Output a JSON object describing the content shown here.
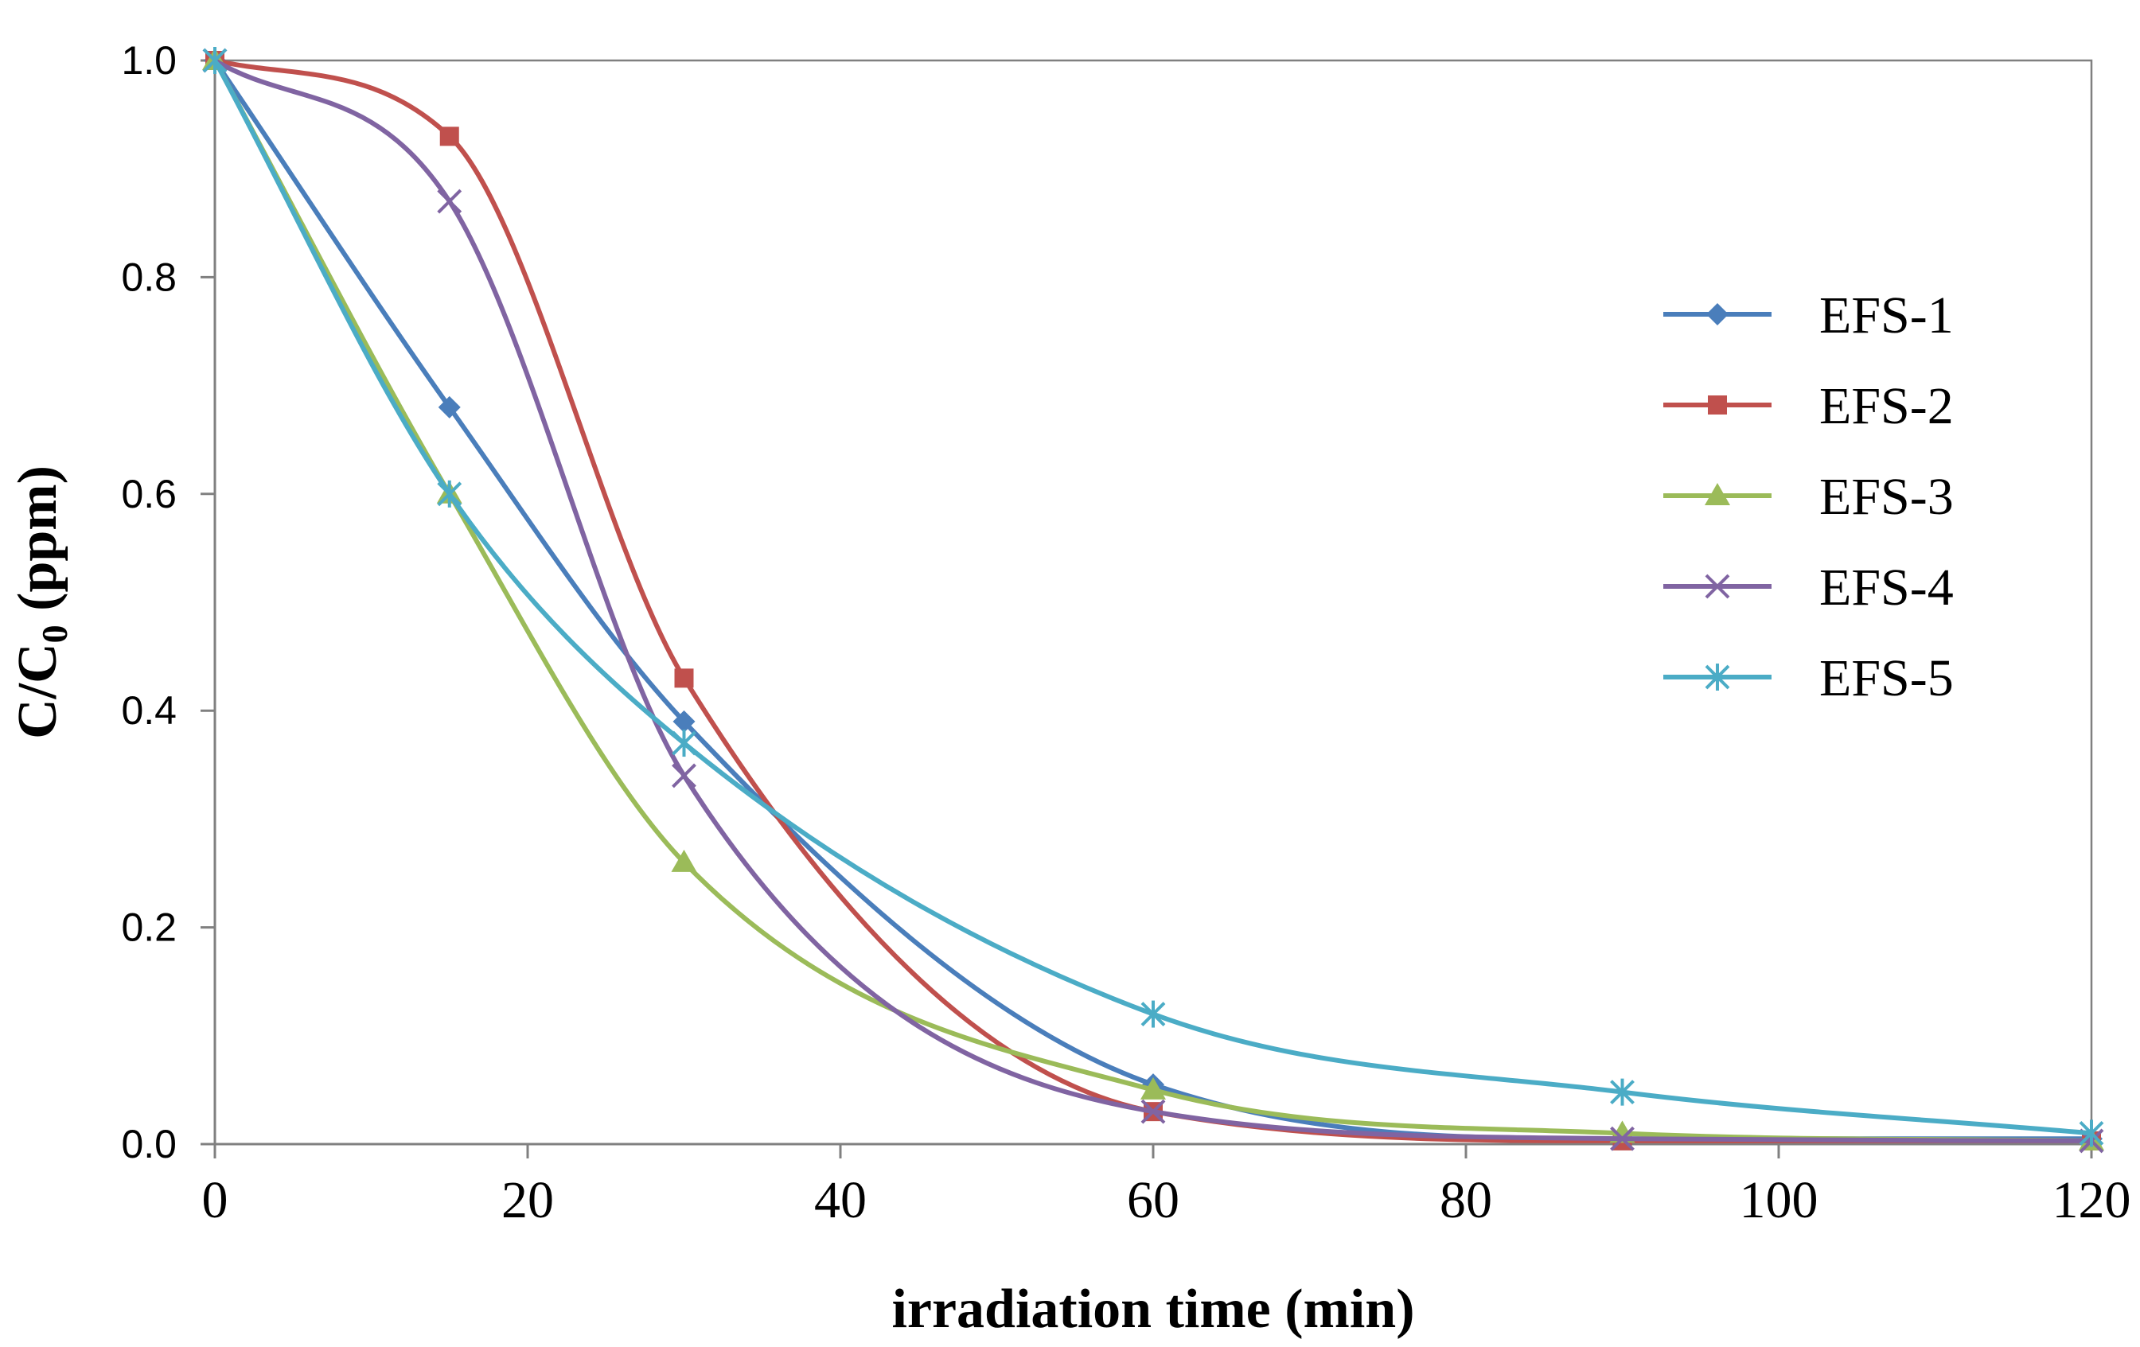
{
  "chart_data": {
    "type": "line",
    "title": "",
    "xlabel": "irradiation time  (min)",
    "ylabel_main": "C/C",
    "ylabel_sub": "0",
    "ylabel_tail": " (ppm)",
    "xlim": [
      0,
      120
    ],
    "ylim": [
      0,
      1.0
    ],
    "xticks": [
      "0",
      "20",
      "40",
      "60",
      "80",
      "100",
      "120"
    ],
    "yticks": [
      "0.0",
      "0.2",
      "0.4",
      "0.6",
      "0.8",
      "1.0"
    ],
    "legend_position": "right",
    "x": [
      0,
      15,
      30,
      60,
      90,
      120
    ],
    "series": [
      {
        "name": "EFS-1",
        "color": "#4a7ebb",
        "marker": "diamond",
        "values": [
          1.0,
          0.68,
          0.39,
          0.055,
          0.005,
          0.005
        ]
      },
      {
        "name": "EFS-2",
        "color": "#c0504d",
        "marker": "square",
        "values": [
          1.0,
          0.93,
          0.43,
          0.03,
          0.003,
          0.003
        ]
      },
      {
        "name": "EFS-3",
        "color": "#9bbb59",
        "marker": "triangle",
        "values": [
          1.0,
          0.6,
          0.26,
          0.05,
          0.01,
          0.003
        ]
      },
      {
        "name": "EFS-4",
        "color": "#8064a2",
        "marker": "x",
        "values": [
          1.0,
          0.87,
          0.34,
          0.03,
          0.005,
          0.003
        ]
      },
      {
        "name": "EFS-5",
        "color": "#4bacc6",
        "marker": "star",
        "values": [
          1.0,
          0.6,
          0.37,
          0.12,
          0.048,
          0.01
        ]
      }
    ]
  }
}
